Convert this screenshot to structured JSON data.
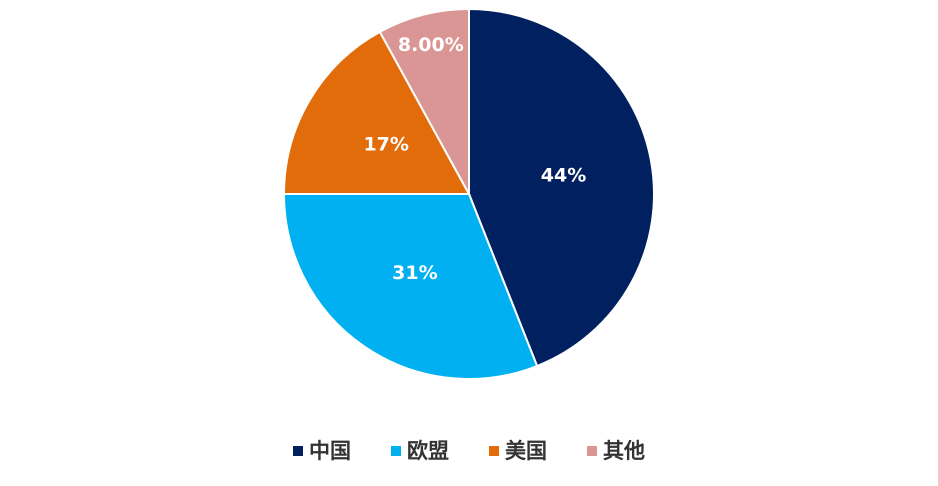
{
  "chart_data": {
    "type": "pie",
    "categories": [
      "中国",
      "欧盟",
      "美国",
      "其他"
    ],
    "values": [
      44,
      31,
      17,
      8
    ],
    "value_labels": [
      "44%",
      "31%",
      "17%",
      "8.00%"
    ],
    "colors": [
      "#002060",
      "#00b0f0",
      "#e36c0a",
      "#d99694"
    ],
    "legend": "bottom"
  }
}
